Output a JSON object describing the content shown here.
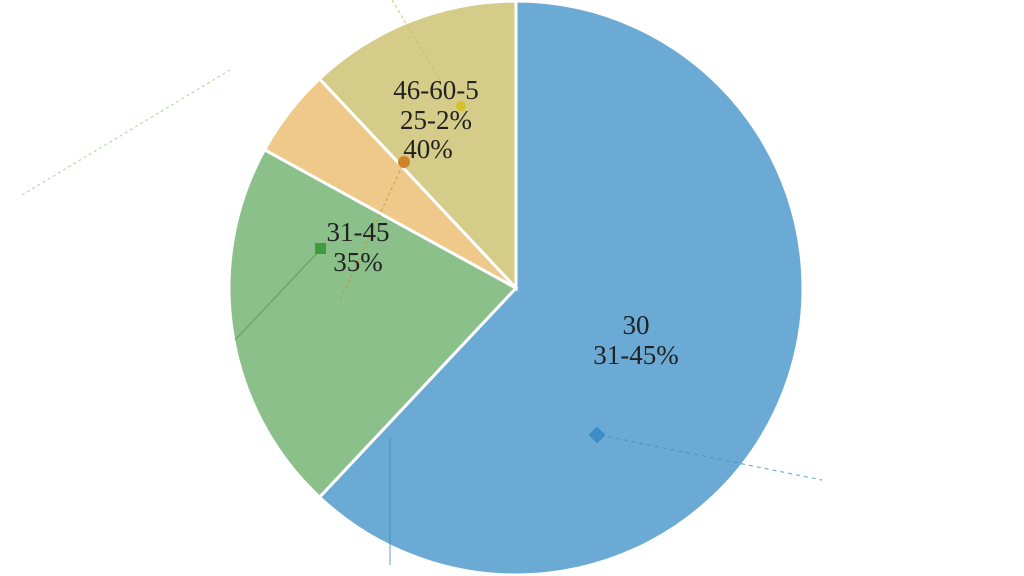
{
  "chart_data": {
    "type": "pie",
    "values": [
      62,
      21,
      5,
      12
    ],
    "colors": [
      "#6aaad4",
      "#8cc08a",
      "#eec98a",
      "#d4cc88"
    ],
    "labels": [
      [
        "30",
        "31-45%"
      ],
      [
        "31-45",
        "35%"
      ],
      [
        "40%"
      ],
      [
        "46-60-5",
        "25-2%"
      ]
    ]
  }
}
